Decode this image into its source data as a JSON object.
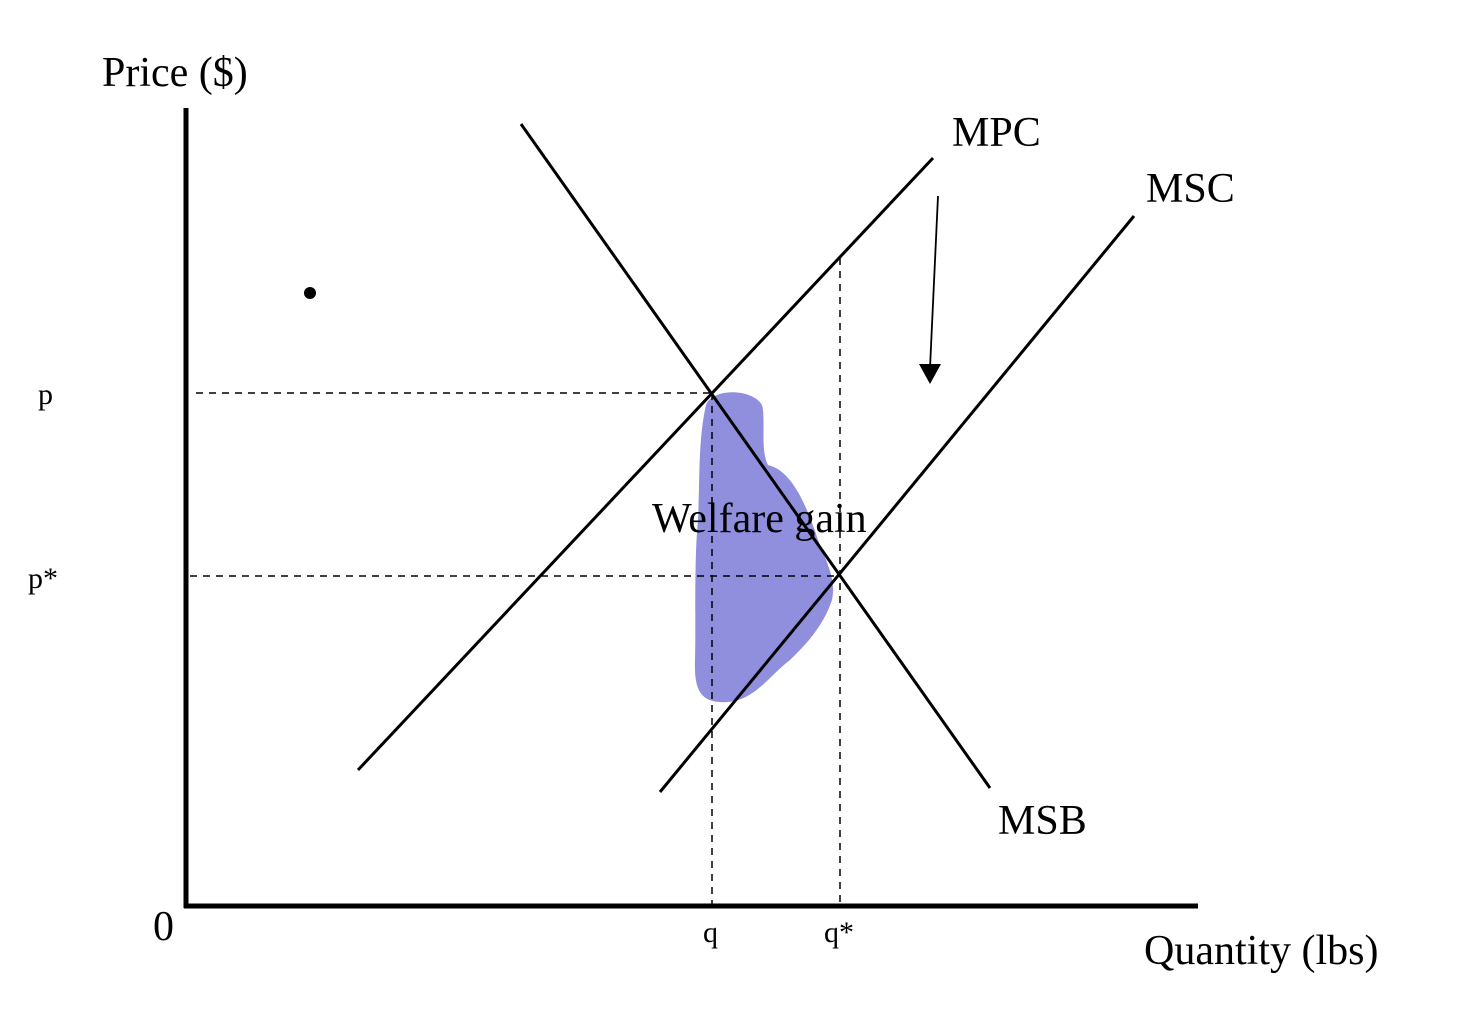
{
  "axes": {
    "y_label": "Price ($)",
    "x_label": "Quantity (lbs)",
    "origin_label": "0"
  },
  "curves": {
    "mpc_label": "MPC",
    "msc_label": "MSC",
    "msb_label": "MSB"
  },
  "markers": {
    "p_label": "p",
    "p_star_label": "p*",
    "q_label": "q",
    "q_star_label": "q*"
  },
  "annotation": {
    "area_label": "Welfare gain"
  },
  "colors": {
    "line": "#000000",
    "shaded_area": "#8f8fde"
  }
}
